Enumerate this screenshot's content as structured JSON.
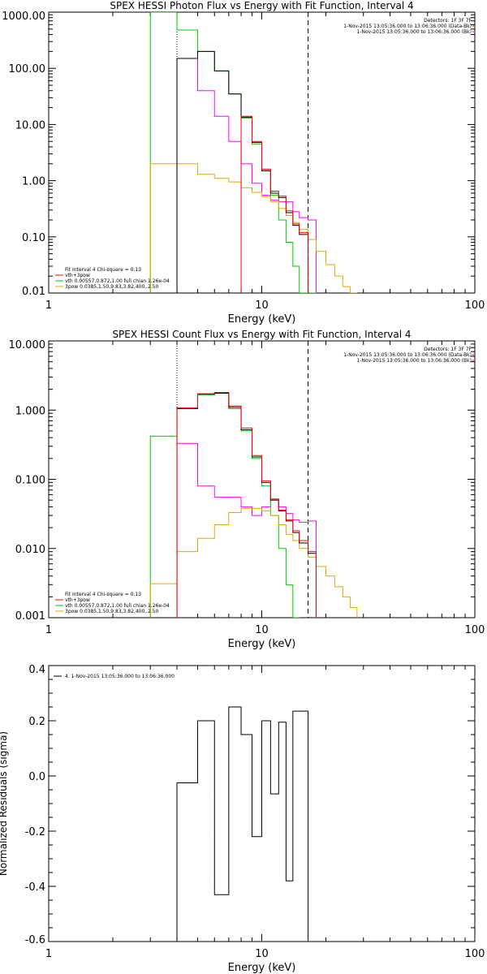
{
  "chart_data": [
    {
      "type": "line",
      "title": "SPEX HESSI Photon Flux vs Energy with Fit Function, Interval 4",
      "xlabel": "Energy (keV)",
      "ylabel": "",
      "xscale": "log",
      "yscale": "log",
      "xlim": [
        1,
        100
      ],
      "ylim": [
        0.01,
        1000
      ],
      "xticks": [
        "1",
        "10",
        "100"
      ],
      "yticks": [
        "0.01",
        "0.10",
        "1.00",
        "10.00",
        "100.00",
        "1000.00"
      ],
      "vlines": [
        {
          "x": 4.0,
          "style": "dotted"
        },
        {
          "x": 16.5,
          "style": "dashed"
        }
      ],
      "legend_top": {
        "position": "top-right",
        "lines": [
          "Detectors: 1F 3F 7F",
          "1-Nov-2015 13:05:36.000 to 13:06:36.000 (Data-Bk)",
          "1-Nov-2015 13:05:36.000 to 13:06:36.000 (Bk)"
        ]
      },
      "legend_bottom": {
        "position": "bottom-left",
        "lines": [
          "Fit Interval  4   Chi-square = 0.13",
          "vth+3pow",
          "vth 0.00557,0.872,1.00  full chian 1.26e-04",
          "3pow 0.0385,1.50,9.83,3.82,400.,2.50"
        ]
      },
      "edges": [
        3.0,
        4.0,
        5.0,
        6.0,
        7.0,
        8.0,
        9.0,
        10.0,
        11.0,
        12.0,
        13.0,
        14.0,
        15.0,
        16.5,
        18.0,
        20.0,
        22.0,
        24.0,
        26.0,
        28.0
      ],
      "series": [
        {
          "name": "vth+3pow",
          "color": "#ff00ff",
          "values": [
            null,
            150,
            40,
            14,
            5,
            2.0,
            0.9,
            0.55,
            0.45,
            0.42,
            0.42,
            0.28,
            0.22,
            0.2,
            null,
            null,
            null,
            null,
            null
          ]
        },
        {
          "name": "vth",
          "color": "#00cc00",
          "values": [
            1000,
            480,
            200,
            90,
            35,
            13,
            4.5,
            1.5,
            0.55,
            0.2,
            0.08,
            0.03,
            0.01,
            0.003,
            null,
            null,
            null,
            null,
            null
          ]
        },
        {
          "name": "3pow",
          "color": "#ddaa00",
          "values": [
            2.0,
            2.0,
            1.3,
            1.1,
            0.95,
            0.75,
            0.62,
            0.52,
            0.42,
            0.32,
            0.24,
            0.18,
            0.135,
            0.09,
            0.055,
            0.032,
            0.02,
            0.013,
            0.008
          ]
        },
        {
          "name": "Data-Bk",
          "color": "#000000",
          "values": [
            null,
            150,
            200,
            90,
            35,
            13.5,
            4.8,
            1.5,
            0.6,
            0.5,
            0.27,
            0.16,
            0.11,
            null,
            null,
            null,
            null,
            null,
            null
          ]
        },
        {
          "name": "Data-Bk fit",
          "color": "#ff0000",
          "values": [
            null,
            null,
            null,
            null,
            null,
            14,
            5.0,
            1.6,
            0.65,
            0.53,
            0.29,
            0.17,
            0.12,
            null,
            null,
            null,
            null,
            null,
            null
          ]
        }
      ]
    },
    {
      "type": "line",
      "title": "SPEX HESSI Count Flux vs Energy with Fit Function, Interval 4",
      "xlabel": "Energy (keV)",
      "ylabel": "",
      "xscale": "log",
      "yscale": "log",
      "xlim": [
        1,
        100
      ],
      "ylim": [
        0.001,
        10
      ],
      "xticks": [
        "1",
        "10",
        "100"
      ],
      "yticks": [
        "0.001",
        "0.010",
        "0.100",
        "1.000",
        "10.000"
      ],
      "vlines": [
        {
          "x": 4.0,
          "style": "dotted"
        },
        {
          "x": 16.5,
          "style": "dashed"
        }
      ],
      "legend_top": {
        "position": "top-right",
        "lines": [
          "Detectors: 1F 3F 7F",
          "1-Nov-2015 13:05:36.000 to 13:06:36.000 (Data-Bk)",
          "1-Nov-2015 13:05:36.000 to 13:06:36.000 (Bk)"
        ]
      },
      "legend_bottom": {
        "position": "bottom-left",
        "lines": [
          "Fit Interval  4   Chi-square = 0.13",
          "vth+3pow",
          "vth 0.00557,0.872,1.00  full chian 1.26e-04",
          "3pow 0.0385,1.50,9.83,3.82,400.,2.50"
        ]
      },
      "edges": [
        3.0,
        4.0,
        5.0,
        6.0,
        7.0,
        8.0,
        9.0,
        10.0,
        11.0,
        12.0,
        13.0,
        14.0,
        15.0,
        16.5,
        18.0,
        20.0,
        22.0,
        24.0,
        26.0,
        28.0
      ],
      "series": [
        {
          "name": "vth+3pow",
          "color": "#ff00ff",
          "values": [
            null,
            0.33,
            0.08,
            0.055,
            0.055,
            0.04,
            0.03,
            0.04,
            0.05,
            0.04,
            0.032,
            0.026,
            0.024,
            0.025,
            null,
            null,
            null,
            null,
            null
          ]
        },
        {
          "name": "vth",
          "color": "#00cc00",
          "values": [
            0.42,
            1.05,
            1.65,
            1.75,
            1.05,
            0.5,
            0.2,
            0.08,
            0.03,
            0.01,
            0.003,
            0.001,
            null,
            null,
            null,
            null,
            null,
            null,
            null
          ]
        },
        {
          "name": "3pow",
          "color": "#ddaa00",
          "values": [
            0.0031,
            0.009,
            0.014,
            0.022,
            0.033,
            0.038,
            0.038,
            0.035,
            0.03,
            0.022,
            0.016,
            0.013,
            0.01,
            0.0075,
            0.0055,
            0.004,
            0.0028,
            0.002,
            0.0014
          ]
        },
        {
          "name": "Data-Bk",
          "color": "#000000",
          "values": [
            null,
            1.05,
            1.7,
            1.75,
            1.1,
            0.52,
            0.21,
            0.09,
            0.05,
            0.035,
            0.025,
            0.017,
            0.012,
            0.0085,
            null,
            null,
            null,
            null,
            null
          ]
        },
        {
          "name": "Data-Bk fit",
          "color": "#ff0000",
          "values": [
            null,
            1.08,
            1.72,
            1.8,
            1.15,
            0.55,
            0.22,
            0.095,
            0.052,
            0.036,
            0.026,
            0.018,
            0.013,
            0.009,
            null,
            null,
            null,
            null,
            null
          ]
        }
      ]
    },
    {
      "type": "line",
      "title": "",
      "xlabel": "Energy (keV)",
      "ylabel": "Normalized Residuals (sigma)",
      "xscale": "log",
      "yscale": "linear",
      "xlim": [
        1,
        100
      ],
      "ylim": [
        -0.6,
        0.4
      ],
      "xticks": [
        "1",
        "10",
        "100"
      ],
      "yticks": [
        "-0.6",
        "-0.4",
        "-0.2",
        "0.0",
        "0.2",
        "0.4"
      ],
      "legend_top": {
        "position": "top-left",
        "lines": [
          "4.  1-Nov-2015 13:05:36.000 to 13:06:36.000"
        ]
      },
      "edges": [
        4.0,
        5.0,
        6.0,
        7.0,
        8.0,
        9.0,
        10.0,
        11.0,
        12.0,
        13.0,
        14.0,
        15.0,
        16.5
      ],
      "series": [
        {
          "name": "",
          "color": "#000000",
          "values": [
            -0.025,
            0.2,
            -0.43,
            0.25,
            0.15,
            -0.22,
            0.2,
            -0.065,
            0.195,
            -0.38,
            0.235,
            0.235
          ]
        }
      ]
    }
  ]
}
